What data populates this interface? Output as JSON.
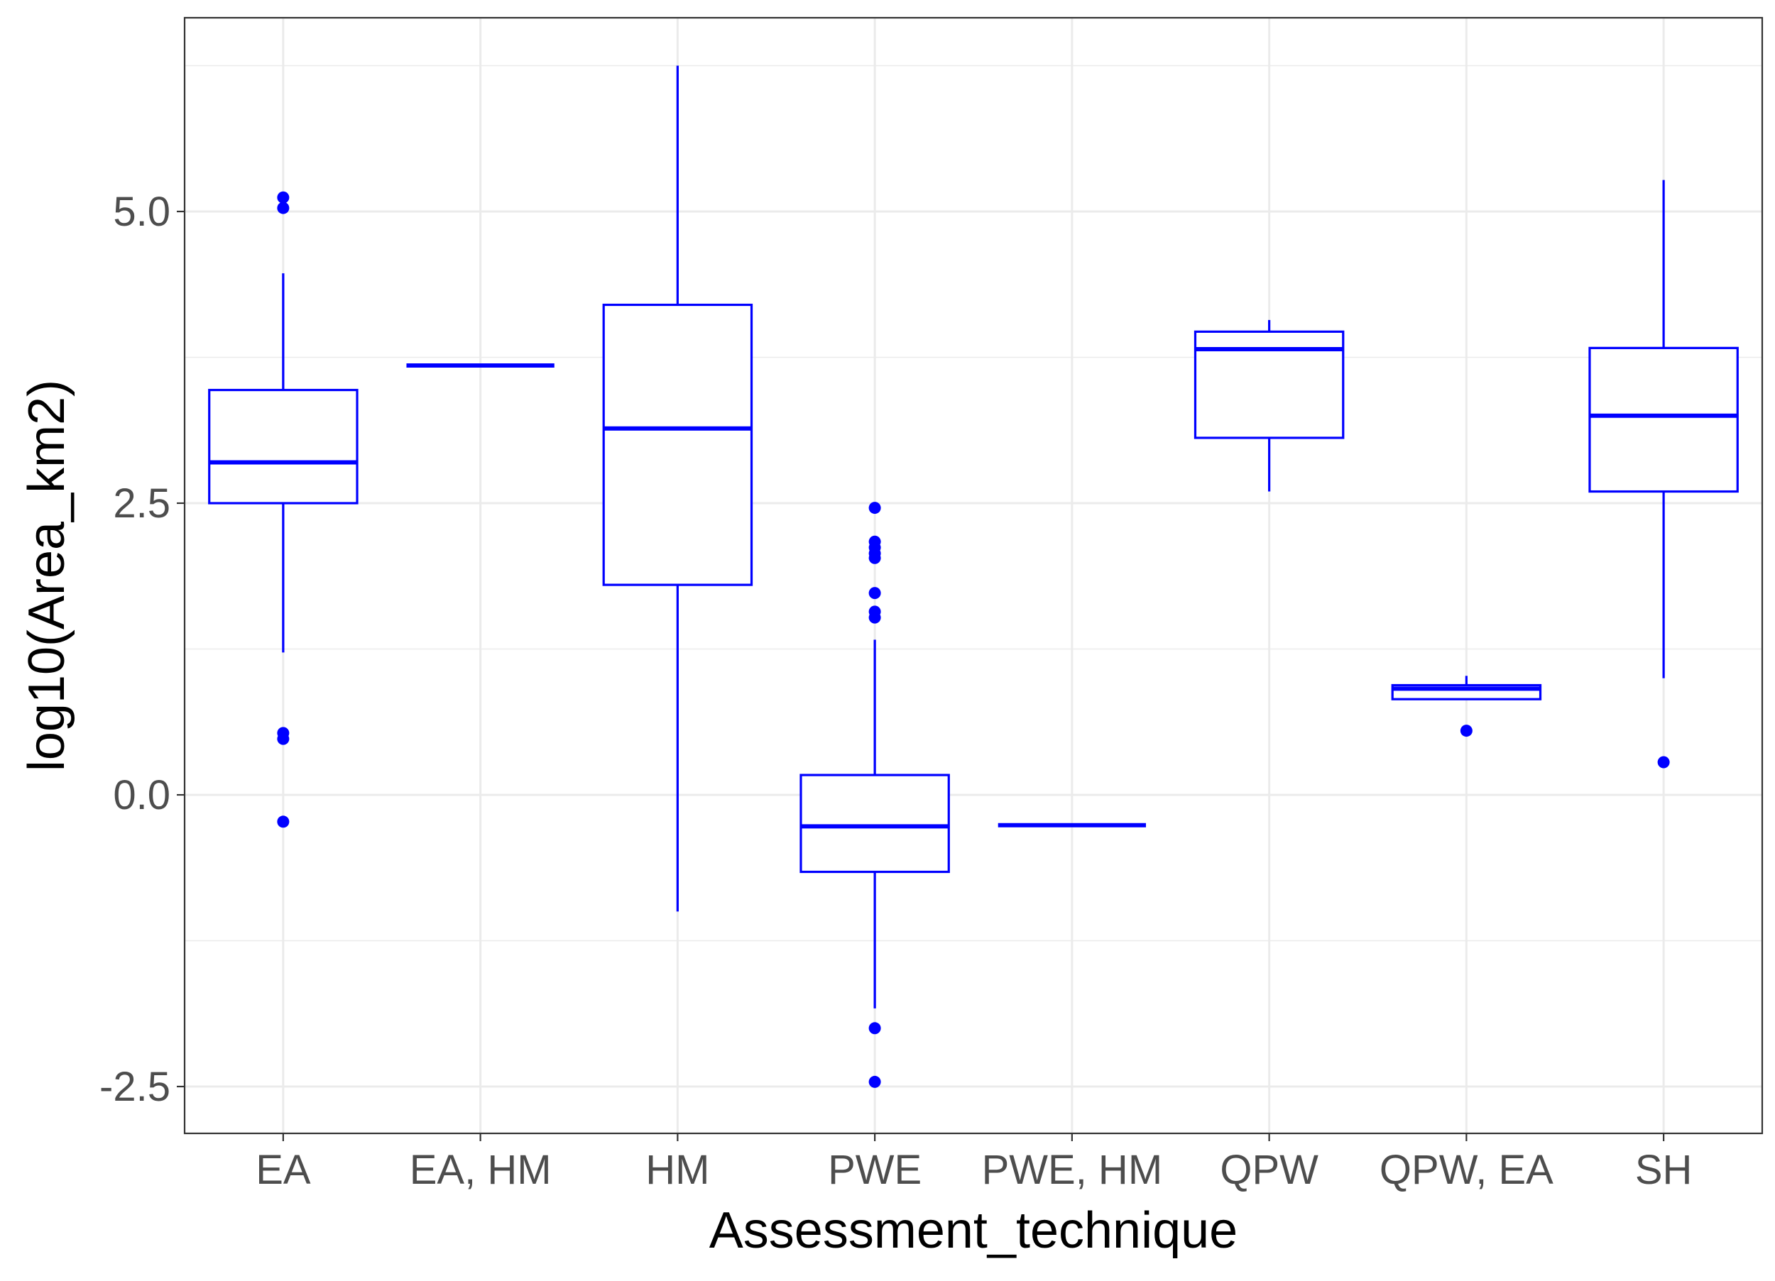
{
  "chart_data": {
    "type": "boxplot",
    "xlabel": "Assessment_technique",
    "ylabel": "log10(Area_km2)",
    "ylim": [
      -2.8,
      6.6
    ],
    "y_ticks": [
      -2.5,
      0.0,
      2.5,
      5.0
    ],
    "y_tick_labels": [
      "-2.5",
      "0.0",
      "2.5",
      "5.0"
    ],
    "y_minor_ticks": [
      -1.25,
      1.25,
      3.75,
      6.25
    ],
    "grid": true,
    "legend": "none",
    "colors": {
      "box": "#0000ff",
      "grid": "#ebebeb",
      "panel_border": "#333333",
      "background": "#ffffff"
    },
    "categories": [
      "EA",
      "EA, HM",
      "HM",
      "PWE",
      "PWE, HM",
      "QPW",
      "QPW, EA",
      "SH"
    ],
    "boxes": [
      {
        "category": "EA",
        "lower_whisker": 1.22,
        "q1": 2.5,
        "median": 2.85,
        "q3": 3.47,
        "upper_whisker": 4.47,
        "outliers": [
          5.12,
          5.03,
          0.53,
          0.48,
          -0.23
        ]
      },
      {
        "category": "EA, HM",
        "lower_whisker": 3.68,
        "q1": 3.68,
        "median": 3.68,
        "q3": 3.68,
        "upper_whisker": 3.68,
        "outliers": []
      },
      {
        "category": "HM",
        "lower_whisker": -1.0,
        "q1": 1.8,
        "median": 3.14,
        "q3": 4.2,
        "upper_whisker": 6.25,
        "outliers": []
      },
      {
        "category": "PWE",
        "lower_whisker": -1.83,
        "q1": -0.66,
        "median": -0.27,
        "q3": 0.17,
        "upper_whisker": 1.33,
        "outliers": [
          2.46,
          2.17,
          2.12,
          2.07,
          2.03,
          1.73,
          1.57,
          1.52,
          -2.0,
          -2.46
        ]
      },
      {
        "category": "PWE, HM",
        "lower_whisker": -0.26,
        "q1": -0.26,
        "median": -0.26,
        "q3": -0.26,
        "upper_whisker": -0.26,
        "outliers": []
      },
      {
        "category": "QPW",
        "lower_whisker": 2.6,
        "q1": 3.06,
        "median": 3.82,
        "q3": 3.97,
        "upper_whisker": 4.07,
        "outliers": []
      },
      {
        "category": "QPW, EA",
        "lower_whisker": 0.82,
        "q1": 0.82,
        "median": 0.91,
        "q3": 0.94,
        "upper_whisker": 1.02,
        "outliers": [
          0.55
        ]
      },
      {
        "category": "SH",
        "lower_whisker": 1.0,
        "q1": 2.6,
        "median": 3.25,
        "q3": 3.83,
        "upper_whisker": 5.27,
        "outliers": [
          0.28
        ]
      }
    ]
  }
}
